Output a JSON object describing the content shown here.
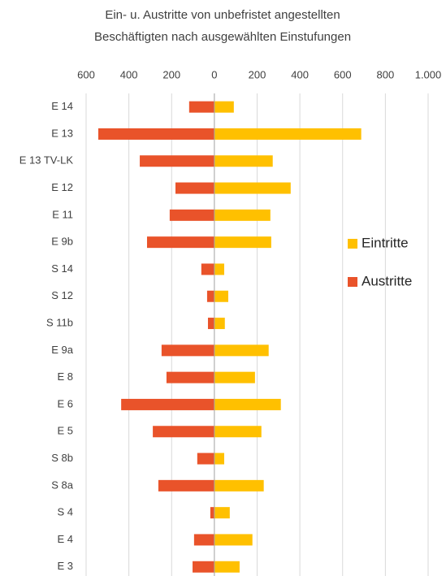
{
  "chart_data": {
    "type": "bar",
    "orientation": "horizontal",
    "title": [
      "Ein- u. Austritte von unbefristet angestellten",
      "Beschäftigten nach ausgewählten Einstufungen"
    ],
    "categories": [
      "E 14",
      "E 13",
      "E 13 TV-LK",
      "E 12",
      "E 11",
      "E 9b",
      "S 14",
      "S 12",
      "S 11b",
      "E 9a",
      "E 8",
      "E 6",
      "E 5",
      "S 8b",
      "S 8a",
      "S 4",
      "E 4",
      "E 3"
    ],
    "series": [
      {
        "name": "Eintritte",
        "color": "#FFC000",
        "values": [
          91,
          687,
          273,
          357,
          262,
          266,
          46,
          65,
          49,
          254,
          190,
          311,
          220,
          46,
          231,
          72,
          178,
          118
        ]
      },
      {
        "name": "Austritte",
        "color": "#E9532A",
        "values": [
          -118,
          -543,
          -349,
          -182,
          -209,
          -315,
          -61,
          -34,
          -30,
          -247,
          -224,
          -436,
          -288,
          -80,
          -262,
          -19,
          -95,
          -102
        ]
      }
    ],
    "xlim": [
      -600,
      1000
    ],
    "xticks": [
      {
        "value": -600,
        "label": "600"
      },
      {
        "value": -400,
        "label": "400"
      },
      {
        "value": -200,
        "label": "200"
      },
      0,
      200,
      400,
      600,
      800,
      {
        "value": 1000,
        "label": "1.000"
      }
    ],
    "grid": true,
    "legend": "right"
  }
}
